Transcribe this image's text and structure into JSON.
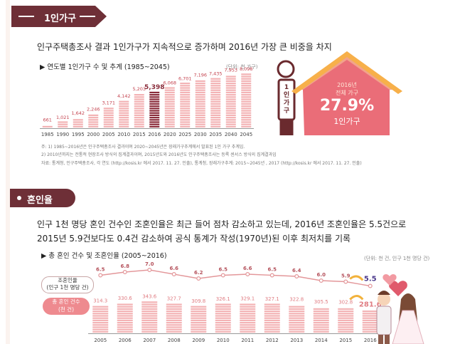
{
  "section1": {
    "tab_label": "1인가구",
    "headline": "인구주택총조사 결과 1인가구가 지속적으로 증가하며 2016년 가장 큰 비중을 차지",
    "chart_title": "▶ 연도별 1인가구 수 및 추계 (1985~2045)",
    "unit": "(단위: 천 가구)",
    "highlight": {
      "line1": "2016년",
      "line2": "전체 가구",
      "percent": "27.9%",
      "label": "1인가구"
    },
    "person_label": [
      "1인",
      "가구"
    ],
    "notes": [
      "주: 1) 1985~2016년은 인구주택총조사 결과이며 2020~2045년은 장래가구추계에서 발표된 1인 가구 추계임.",
      "     2) 2010년까지는 전통적 현장조사 방식의 집계결과이며, 2015년도와 2016년도 인구주택총조사는 등록 센서스 방식의 집계결과임",
      "자료: 통계청, 인구주택총조사, 각 연도 (http://kosis.kr 에서 2017. 11. 27. 인출), 통계청, 장래가구추계: 2015~2045년 , 2017 (http://kosis.kr 에서 2017. 11. 27. 인출)"
    ]
  },
  "section2": {
    "tab_label": "혼인율",
    "para_line1": "인구 1천 명당 혼인 건수인 조혼인율은 최근 들어 점차 감소하고 있는데, 2016년 조혼인율은 5.5건으로",
    "para_line2": "2015년 5.9건보다도 0.4건 감소하여 공식 통계가 작성(1970년)된 이후 최저치를 기록",
    "chart_title": "▶ 총 혼인 건수 및 조혼인율 (2005~2016)",
    "unit": "(단위: 천 건, 인구 1천 명당 건)",
    "rate_label": [
      "조혼인율",
      "(인구 1천 명당 건)"
    ],
    "count_label": [
      "총 혼인 건수",
      "(천 건)"
    ]
  },
  "chart_data": [
    {
      "type": "bar",
      "title": "연도별 1인가구 수 및 추계 (1985~2045)",
      "ylabel": "천 가구",
      "categories": [
        "1985",
        "1990",
        "1995",
        "2000",
        "2005",
        "2010",
        "2015",
        "2016",
        "2020",
        "2025",
        "2030",
        "2035",
        "2040",
        "2045"
      ],
      "values": [
        661,
        1021,
        1642,
        2246,
        3171,
        4142,
        5203,
        5398,
        6068,
        6701,
        7196,
        7435,
        7953,
        8098
      ],
      "value_labels": [
        "661",
        "1,021",
        "1,642",
        "2,246",
        "3,171",
        "4,142",
        "5,203",
        "5,398",
        "6,068",
        "6,701",
        "7,196",
        "7,435",
        "7,953",
        "8,098"
      ],
      "highlight_index": 7,
      "colors": {
        "base": "#f3b3b5",
        "highlight": "#8a2d3b",
        "label": "#c4434f"
      },
      "ylim": [
        0,
        8500
      ]
    },
    {
      "type": "bar+line",
      "title": "총 혼인 건수 및 조혼인율 (2005~2016)",
      "categories": [
        "2005",
        "2006",
        "2007",
        "2008",
        "2009",
        "2010",
        "2011",
        "2012",
        "2013",
        "2014",
        "2015",
        "2016"
      ],
      "series": [
        {
          "name": "총 혼인 건수 (천 건)",
          "type": "bar",
          "values": [
            314.3,
            330.6,
            343.6,
            327.7,
            309.8,
            326.1,
            329.1,
            327.1,
            322.8,
            305.5,
            302.8,
            281.6
          ]
        },
        {
          "name": "조혼인율 (인구 1천 명당 건)",
          "type": "line",
          "values": [
            6.5,
            6.8,
            7.0,
            6.6,
            6.2,
            6.5,
            6.6,
            6.5,
            6.4,
            6.0,
            5.9,
            5.5
          ]
        }
      ],
      "value_labels_bar": [
        "314.3",
        "330.6",
        "343.6",
        "327.7",
        "309.8",
        "326.1",
        "329.1",
        "327.1",
        "322.8",
        "305.5",
        "302.8",
        "281.6"
      ],
      "value_labels_line": [
        "6.5",
        "6.8",
        "7.0",
        "6.6",
        "6.2",
        "6.5",
        "6.6",
        "6.5",
        "6.4",
        "6.0",
        "5.9",
        "5.5"
      ],
      "colors": {
        "bar": "#f3b3b5",
        "bar_label": "#e07d83",
        "line": "#e3979a",
        "line_label": "#b5525c",
        "last_line_label": "#4c3a8c",
        "arrow": "#f2b23c"
      }
    }
  ]
}
